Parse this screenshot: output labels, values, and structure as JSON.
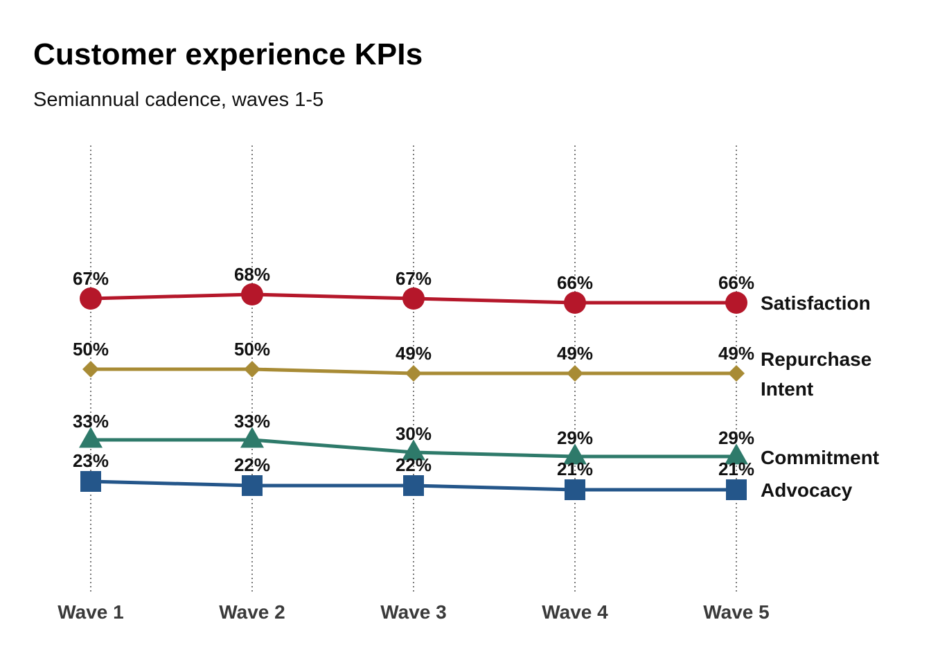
{
  "title": "Customer experience KPIs",
  "subtitle": "Semiannual cadence, waves 1-5",
  "chart_data": {
    "type": "line",
    "title": "Customer experience KPIs",
    "subtitle": "Semiannual cadence, waves 1-5",
    "categories": [
      "Wave 1",
      "Wave 2",
      "Wave 3",
      "Wave 4",
      "Wave 5"
    ],
    "xlabel": "",
    "ylabel": "",
    "ylim": [
      0,
      100
    ],
    "grid": "vertical dotted lines at each wave",
    "legend": "direct labels at right end of each line",
    "value_format": "percent",
    "series": [
      {
        "name": "Satisfaction",
        "label_lines": [
          "Satisfaction"
        ],
        "values": [
          67,
          68,
          67,
          66,
          66
        ],
        "data_labels": [
          "67%",
          "68%",
          "67%",
          "66%",
          "66%"
        ],
        "color": "#b5172a",
        "marker": "circle"
      },
      {
        "name": "Repurchase Intent",
        "label_lines": [
          "Repurchase",
          "Intent"
        ],
        "values": [
          50,
          50,
          49,
          49,
          49
        ],
        "data_labels": [
          "50%",
          "50%",
          "49%",
          "49%",
          "49%"
        ],
        "color": "#a88b35",
        "marker": "diamond"
      },
      {
        "name": "Commitment",
        "label_lines": [
          "Commitment"
        ],
        "values": [
          33,
          33,
          30,
          29,
          29
        ],
        "data_labels": [
          "33%",
          "33%",
          "30%",
          "29%",
          "29%"
        ],
        "color": "#2e7a6a",
        "marker": "triangle"
      },
      {
        "name": "Advocacy",
        "label_lines": [
          "Advocacy"
        ],
        "values": [
          23,
          22,
          22,
          21,
          21
        ],
        "data_labels": [
          "23%",
          "22%",
          "22%",
          "21%",
          "21%"
        ],
        "color": "#24568a",
        "marker": "square"
      }
    ]
  }
}
